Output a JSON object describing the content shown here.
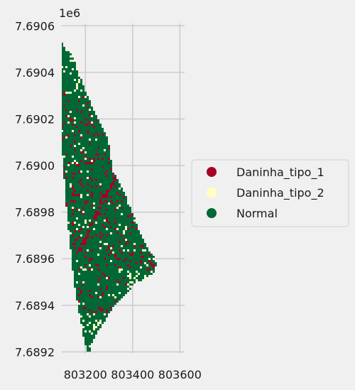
{
  "chart_data": {
    "type": "heatmap",
    "description_kind": "categorical raster map (GeoPandas plot)",
    "y_offset_label": "1e6",
    "xlim": [
      803100,
      803620
    ],
    "ylim": [
      7689195,
      7690610
    ],
    "x_ticks": [
      803200,
      803400,
      803600
    ],
    "x_tick_labels": [
      "803200",
      "803400",
      "803600"
    ],
    "y_ticks": [
      7689200,
      7689400,
      7689600,
      7689800,
      7690000,
      7690200,
      7690400,
      7690600
    ],
    "y_tick_labels": [
      "7.6892",
      "7.6894",
      "7.6896",
      "7.6898",
      "7.6900",
      "7.6902",
      "7.6904",
      "7.6906"
    ],
    "grid": true,
    "legend_position": "right",
    "categories": [
      {
        "name": "Daninha_tipo_1",
        "color": "#a50026"
      },
      {
        "name": "Daninha_tipo_2",
        "color": "#ffffbf"
      },
      {
        "name": "Normal",
        "color": "#006837"
      }
    ],
    "region_polygon": [
      [
        803080,
        7690540
      ],
      [
        803090,
        7690540
      ],
      [
        803120,
        7690500
      ],
      [
        803145,
        7690470
      ],
      [
        803175,
        7690390
      ],
      [
        803200,
        7690320
      ],
      [
        803230,
        7690250
      ],
      [
        803270,
        7690170
      ],
      [
        803295,
        7690120
      ],
      [
        803310,
        7690020
      ],
      [
        803315,
        7689980
      ],
      [
        803375,
        7689860
      ],
      [
        803395,
        7689810
      ],
      [
        803415,
        7689755
      ],
      [
        803435,
        7689700
      ],
      [
        803465,
        7689640
      ],
      [
        803490,
        7689610
      ],
      [
        803500,
        7689575
      ],
      [
        803490,
        7689540
      ],
      [
        803450,
        7689510
      ],
      [
        803420,
        7689505
      ],
      [
        803385,
        7689465
      ],
      [
        803345,
        7689420
      ],
      [
        803310,
        7689380
      ],
      [
        803265,
        7689305
      ],
      [
        803240,
        7689265
      ],
      [
        803225,
        7689230
      ],
      [
        803220,
        7689200
      ],
      [
        803205,
        7689205
      ],
      [
        803195,
        7689250
      ],
      [
        803180,
        7689330
      ],
      [
        803165,
        7689420
      ],
      [
        803150,
        7689510
      ],
      [
        803140,
        7689620
      ],
      [
        803128,
        7689730
      ],
      [
        803118,
        7689840
      ],
      [
        803110,
        7689950
      ],
      [
        803100,
        7690060
      ],
      [
        803090,
        7690170
      ],
      [
        803085,
        7690280
      ],
      [
        803082,
        7690400
      ],
      [
        803080,
        7690540
      ]
    ]
  }
}
